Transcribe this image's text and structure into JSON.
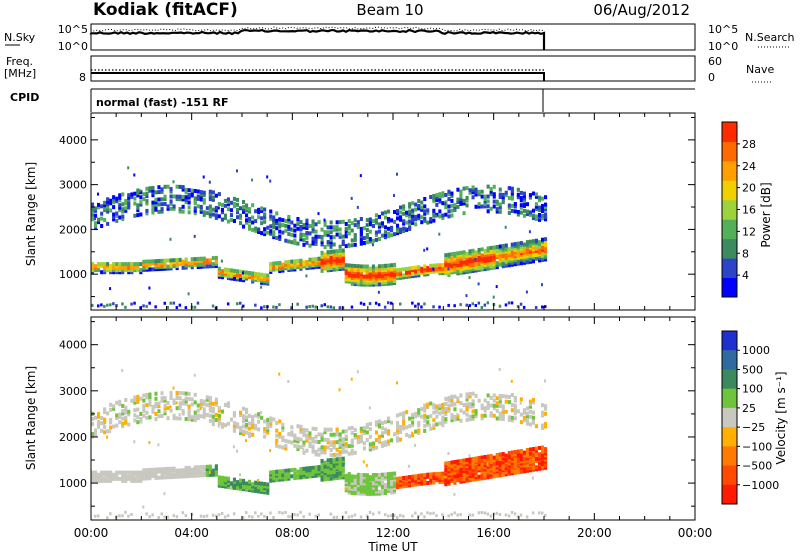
{
  "header": {
    "radar": "Kodiak (fitACF)",
    "beam": "Beam 10",
    "date": "06/Aug/2012"
  },
  "top_panels": {
    "nsky_label": "N.Sky",
    "nsearch_label": "N.Search",
    "noise_ticks": [
      "10^5",
      "10^0"
    ],
    "freq_label": "Freq.",
    "freq_unit": "[MHz]",
    "freq_ticks": [
      "8"
    ],
    "nave_label": "Nave",
    "nave_ticks": [
      "60",
      "0"
    ],
    "cpid_label": "CPID",
    "cpid_text": "normal (fast) -151 RF"
  },
  "chart_data": [
    {
      "type": "heatmap",
      "name": "power",
      "ylabel": "Slant Range [km]",
      "yticks": [
        1000,
        2000,
        3000,
        4000
      ],
      "ylim": [
        200,
        4600
      ],
      "xlim_hours": [
        0,
        24
      ],
      "data_end_hour": 18,
      "colorbar": {
        "label": "Power [dB]",
        "ticks": [
          "4",
          "8",
          "12",
          "16",
          "20",
          "24",
          "28"
        ],
        "colors": [
          "#0000ff",
          "#2b44c8",
          "#3c8a5e",
          "#54b058",
          "#9ed23c",
          "#f0d000",
          "#ffa000",
          "#ff6a00",
          "#ff2a00"
        ]
      }
    },
    {
      "type": "heatmap",
      "name": "velocity",
      "ylabel": "Slant Range [km]",
      "yticks": [
        1000,
        2000,
        3000,
        4000
      ],
      "ylim": [
        200,
        4600
      ],
      "xlim_hours": [
        0,
        24
      ],
      "data_end_hour": 18,
      "colorbar": {
        "label": "Velocity [m s⁻¹]",
        "ticks": [
          "1000",
          "500",
          "100",
          "25",
          "−25",
          "−100",
          "−500",
          "−1000"
        ],
        "colors": [
          "#2030d0",
          "#2f6aa0",
          "#3a8a5e",
          "#6ec43a",
          "#c8c8c0",
          "#ffb000",
          "#ff7a00",
          "#ff4a00",
          "#ff1a00"
        ]
      }
    }
  ],
  "x_axis": {
    "ticks": [
      "00:00",
      "04:00",
      "08:00",
      "12:00",
      "16:00",
      "20:00",
      "00:00"
    ],
    "label": "Time UT"
  }
}
